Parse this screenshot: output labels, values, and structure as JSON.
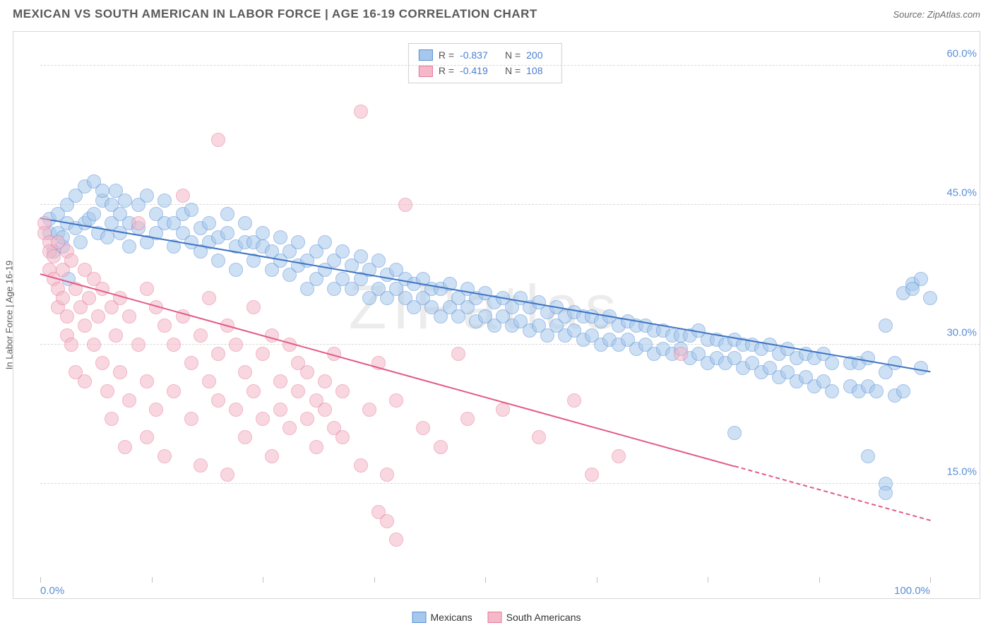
{
  "title": "MEXICAN VS SOUTH AMERICAN IN LABOR FORCE | AGE 16-19 CORRELATION CHART",
  "source": "Source: ZipAtlas.com",
  "watermark": "ZIPatlas",
  "ylabel": "In Labor Force | Age 16-19",
  "chart": {
    "type": "scatter",
    "background_color": "#ffffff",
    "grid_color": "#d8d8d8",
    "xlim": [
      0,
      100
    ],
    "ylim": [
      5,
      63
    ],
    "xtick_positions": [
      0,
      12.5,
      25,
      37.5,
      50,
      62.5,
      75,
      87.5,
      100
    ],
    "xtick_labels": {
      "0": "0.0%",
      "100": "100.0%"
    },
    "ytick_positions": [
      15,
      30,
      45,
      60
    ],
    "ytick_labels": {
      "15": "15.0%",
      "30": "30.0%",
      "45": "45.0%",
      "60": "60.0%"
    },
    "point_radius": 10,
    "point_opacity": 0.55,
    "series": [
      {
        "key": "mexicans",
        "label": "Mexicans",
        "fill": "#a6c8ec",
        "stroke": "#5a8fd6",
        "line_color": "#3d73c2",
        "R": "-0.837",
        "N": "200",
        "trend": {
          "x0": 0,
          "y0": 43.5,
          "x1": 100,
          "y1": 27.0,
          "dash_from_x": null
        },
        "points": [
          [
            1,
            42
          ],
          [
            1,
            43.5
          ],
          [
            1.5,
            40
          ],
          [
            2,
            42
          ],
          [
            2,
            44
          ],
          [
            2.5,
            40.5
          ],
          [
            2.5,
            41.5
          ],
          [
            3,
            43
          ],
          [
            3,
            45
          ],
          [
            3.2,
            37
          ],
          [
            4,
            42.5
          ],
          [
            4,
            46
          ],
          [
            4.5,
            41
          ],
          [
            5,
            43
          ],
          [
            5,
            47
          ],
          [
            5.5,
            43.5
          ],
          [
            6,
            44
          ],
          [
            6,
            47.5
          ],
          [
            6.5,
            42
          ],
          [
            7,
            45.5
          ],
          [
            7,
            46.5
          ],
          [
            7.5,
            41.5
          ],
          [
            8,
            43
          ],
          [
            8,
            45
          ],
          [
            8.5,
            46.5
          ],
          [
            9,
            42
          ],
          [
            9,
            44
          ],
          [
            9.5,
            45.5
          ],
          [
            10,
            43
          ],
          [
            10,
            40.5
          ],
          [
            11,
            42.5
          ],
          [
            11,
            45
          ],
          [
            12,
            41
          ],
          [
            12,
            46
          ],
          [
            13,
            44
          ],
          [
            13,
            42
          ],
          [
            14,
            43
          ],
          [
            14,
            45.5
          ],
          [
            15,
            40.5
          ],
          [
            15,
            43
          ],
          [
            16,
            42
          ],
          [
            16,
            44
          ],
          [
            17,
            41
          ],
          [
            17,
            44.5
          ],
          [
            18,
            40
          ],
          [
            18,
            42.5
          ],
          [
            19,
            41
          ],
          [
            19,
            43
          ],
          [
            20,
            39
          ],
          [
            20,
            41.5
          ],
          [
            21,
            42
          ],
          [
            21,
            44
          ],
          [
            22,
            38
          ],
          [
            22,
            40.5
          ],
          [
            23,
            41
          ],
          [
            23,
            43
          ],
          [
            24,
            39
          ],
          [
            24,
            41
          ],
          [
            25,
            40.5
          ],
          [
            25,
            42
          ],
          [
            26,
            38
          ],
          [
            26,
            40
          ],
          [
            27,
            39
          ],
          [
            27,
            41.5
          ],
          [
            28,
            37.5
          ],
          [
            28,
            40
          ],
          [
            29,
            38.5
          ],
          [
            29,
            41
          ],
          [
            30,
            36
          ],
          [
            30,
            39
          ],
          [
            31,
            37
          ],
          [
            31,
            40
          ],
          [
            32,
            38
          ],
          [
            32,
            41
          ],
          [
            33,
            36
          ],
          [
            33,
            39
          ],
          [
            34,
            37
          ],
          [
            34,
            40
          ],
          [
            35,
            36
          ],
          [
            35,
            38.5
          ],
          [
            36,
            37
          ],
          [
            36,
            39.5
          ],
          [
            37,
            35
          ],
          [
            37,
            38
          ],
          [
            38,
            36
          ],
          [
            38,
            39
          ],
          [
            39,
            35
          ],
          [
            39,
            37.5
          ],
          [
            40,
            36
          ],
          [
            40,
            38
          ],
          [
            41,
            35
          ],
          [
            41,
            37
          ],
          [
            42,
            34
          ],
          [
            42,
            36.5
          ],
          [
            43,
            35
          ],
          [
            43,
            37
          ],
          [
            44,
            34
          ],
          [
            44,
            36
          ],
          [
            45,
            33
          ],
          [
            45,
            36
          ],
          [
            46,
            34
          ],
          [
            46,
            36.5
          ],
          [
            47,
            33
          ],
          [
            47,
            35
          ],
          [
            48,
            34
          ],
          [
            48,
            36
          ],
          [
            49,
            32.5
          ],
          [
            49,
            35
          ],
          [
            50,
            33
          ],
          [
            50,
            35.5
          ],
          [
            51,
            32
          ],
          [
            51,
            34.5
          ],
          [
            52,
            33
          ],
          [
            52,
            35
          ],
          [
            53,
            32
          ],
          [
            53,
            34
          ],
          [
            54,
            32.5
          ],
          [
            54,
            35
          ],
          [
            55,
            31.5
          ],
          [
            55,
            34
          ],
          [
            56,
            32
          ],
          [
            56,
            34.5
          ],
          [
            57,
            31
          ],
          [
            57,
            33.5
          ],
          [
            58,
            32
          ],
          [
            58,
            34
          ],
          [
            59,
            31
          ],
          [
            59,
            33
          ],
          [
            60,
            31.5
          ],
          [
            60,
            33.5
          ],
          [
            61,
            30.5
          ],
          [
            61,
            33
          ],
          [
            62,
            31
          ],
          [
            62,
            33
          ],
          [
            63,
            30
          ],
          [
            63,
            32.5
          ],
          [
            64,
            30.5
          ],
          [
            64,
            33
          ],
          [
            65,
            30
          ],
          [
            65,
            32
          ],
          [
            66,
            30.5
          ],
          [
            66,
            32.5
          ],
          [
            67,
            29.5
          ],
          [
            67,
            32
          ],
          [
            68,
            30
          ],
          [
            68,
            32
          ],
          [
            69,
            29
          ],
          [
            69,
            31.5
          ],
          [
            70,
            29.5
          ],
          [
            70,
            31.5
          ],
          [
            71,
            29
          ],
          [
            71,
            31
          ],
          [
            72,
            29.5
          ],
          [
            72,
            31
          ],
          [
            73,
            28.5
          ],
          [
            73,
            31
          ],
          [
            74,
            29
          ],
          [
            74,
            31.5
          ],
          [
            75,
            28
          ],
          [
            75,
            30.5
          ],
          [
            76,
            28.5
          ],
          [
            76,
            30.5
          ],
          [
            77,
            28
          ],
          [
            77,
            30
          ],
          [
            78,
            28.5
          ],
          [
            78,
            30.5
          ],
          [
            79,
            27.5
          ],
          [
            79,
            30
          ],
          [
            80,
            28
          ],
          [
            80,
            30
          ],
          [
            81,
            27
          ],
          [
            81,
            29.5
          ],
          [
            82,
            27.5
          ],
          [
            82,
            30
          ],
          [
            83,
            26.5
          ],
          [
            83,
            29
          ],
          [
            84,
            27
          ],
          [
            84,
            29.5
          ],
          [
            85,
            26
          ],
          [
            85,
            28.5
          ],
          [
            86,
            26.5
          ],
          [
            86,
            29
          ],
          [
            87,
            25.5
          ],
          [
            87,
            28.5
          ],
          [
            88,
            26
          ],
          [
            88,
            29
          ],
          [
            89,
            25
          ],
          [
            89,
            28
          ],
          [
            78,
            20.5
          ],
          [
            93,
            18
          ],
          [
            91,
            25.5
          ],
          [
            91,
            28
          ],
          [
            92,
            25
          ],
          [
            92,
            28
          ],
          [
            93,
            25.5
          ],
          [
            93,
            28.5
          ],
          [
            94,
            25
          ],
          [
            95,
            15
          ],
          [
            95,
            14
          ],
          [
            95,
            27
          ],
          [
            96,
            24.5
          ],
          [
            96,
            28
          ],
          [
            97,
            25
          ],
          [
            97,
            35.5
          ],
          [
            98,
            36.5
          ],
          [
            98,
            36
          ],
          [
            99,
            37
          ],
          [
            99,
            27.5
          ],
          [
            95,
            32
          ],
          [
            100,
            35
          ]
        ]
      },
      {
        "key": "south_americans",
        "label": "South Americans",
        "fill": "#f4b8c8",
        "stroke": "#e67a9a",
        "line_color": "#e35a86",
        "R": "-0.419",
        "N": "108",
        "trend": {
          "x0": 0,
          "y0": 37.5,
          "x1": 100,
          "y1": 11.0,
          "dash_from_x": 78
        },
        "points": [
          [
            0.5,
            43
          ],
          [
            0.5,
            42
          ],
          [
            1,
            41
          ],
          [
            1,
            40
          ],
          [
            1,
            38
          ],
          [
            1.5,
            39.5
          ],
          [
            1.5,
            37
          ],
          [
            2,
            41
          ],
          [
            2,
            36
          ],
          [
            2,
            34
          ],
          [
            2.5,
            38
          ],
          [
            2.5,
            35
          ],
          [
            3,
            40
          ],
          [
            3,
            33
          ],
          [
            3,
            31
          ],
          [
            3.5,
            39
          ],
          [
            3.5,
            30
          ],
          [
            4,
            36
          ],
          [
            4,
            27
          ],
          [
            4.5,
            34
          ],
          [
            5,
            38
          ],
          [
            5,
            32
          ],
          [
            5,
            26
          ],
          [
            5.5,
            35
          ],
          [
            6,
            37
          ],
          [
            6,
            30
          ],
          [
            6.5,
            33
          ],
          [
            7,
            36
          ],
          [
            7,
            28
          ],
          [
            7.5,
            25
          ],
          [
            8,
            34
          ],
          [
            8,
            22
          ],
          [
            8.5,
            31
          ],
          [
            9,
            35
          ],
          [
            9,
            27
          ],
          [
            9.5,
            19
          ],
          [
            10,
            33
          ],
          [
            10,
            24
          ],
          [
            11,
            30
          ],
          [
            11,
            43
          ],
          [
            12,
            36
          ],
          [
            12,
            26
          ],
          [
            12,
            20
          ],
          [
            13,
            34
          ],
          [
            13,
            23
          ],
          [
            14,
            32
          ],
          [
            14,
            18
          ],
          [
            15,
            30
          ],
          [
            15,
            25
          ],
          [
            16,
            33
          ],
          [
            16,
            46
          ],
          [
            17,
            28
          ],
          [
            17,
            22
          ],
          [
            18,
            31
          ],
          [
            18,
            17
          ],
          [
            19,
            35
          ],
          [
            19,
            26
          ],
          [
            20,
            29
          ],
          [
            20,
            24
          ],
          [
            20,
            52
          ],
          [
            21,
            32
          ],
          [
            21,
            16
          ],
          [
            22,
            30
          ],
          [
            22,
            23
          ],
          [
            23,
            27
          ],
          [
            23,
            20
          ],
          [
            24,
            34
          ],
          [
            24,
            25
          ],
          [
            25,
            29
          ],
          [
            25,
            22
          ],
          [
            26,
            31
          ],
          [
            26,
            18
          ],
          [
            27,
            26
          ],
          [
            27,
            23
          ],
          [
            28,
            30
          ],
          [
            28,
            21
          ],
          [
            29,
            25
          ],
          [
            29,
            28
          ],
          [
            30,
            27
          ],
          [
            30,
            22
          ],
          [
            31,
            24
          ],
          [
            31,
            19
          ],
          [
            32,
            26
          ],
          [
            32,
            23
          ],
          [
            33,
            21
          ],
          [
            33,
            29
          ],
          [
            34,
            25
          ],
          [
            34,
            20
          ],
          [
            36,
            55
          ],
          [
            36,
            17
          ],
          [
            37,
            23
          ],
          [
            38,
            28
          ],
          [
            38,
            12
          ],
          [
            39,
            16
          ],
          [
            39,
            11
          ],
          [
            40,
            24
          ],
          [
            41,
            45
          ],
          [
            43,
            21
          ],
          [
            45,
            19
          ],
          [
            47,
            29
          ],
          [
            48,
            22
          ],
          [
            52,
            23
          ],
          [
            56,
            20
          ],
          [
            60,
            24
          ],
          [
            65,
            18
          ],
          [
            72,
            29
          ],
          [
            62,
            16
          ],
          [
            40,
            9
          ]
        ]
      }
    ]
  }
}
